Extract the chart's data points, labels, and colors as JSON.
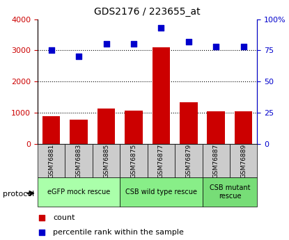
{
  "title": "GDS2176 / 223655_at",
  "samples": [
    "GSM76881",
    "GSM76883",
    "GSM76885",
    "GSM76875",
    "GSM76877",
    "GSM76879",
    "GSM76887",
    "GSM76889"
  ],
  "counts": [
    900,
    780,
    1140,
    1060,
    3090,
    1340,
    1050,
    1050
  ],
  "percentile_ranks": [
    75,
    70,
    80,
    80,
    93,
    82,
    78,
    78
  ],
  "bar_color": "#cc0000",
  "dot_color": "#0000cc",
  "left_ylim": [
    0,
    4000
  ],
  "right_ylim": [
    0,
    100
  ],
  "left_yticks": [
    0,
    1000,
    2000,
    3000,
    4000
  ],
  "right_yticks": [
    0,
    25,
    50,
    75,
    100
  ],
  "right_yticklabels": [
    "0",
    "25",
    "50",
    "75",
    "100%"
  ],
  "groups": [
    {
      "label": "eGFP mock rescue",
      "start": 0,
      "end": 3,
      "color": "#aaffaa"
    },
    {
      "label": "CSB wild type rescue",
      "start": 3,
      "end": 6,
      "color": "#88ee88"
    },
    {
      "label": "CSB mutant\nrescue",
      "start": 6,
      "end": 8,
      "color": "#77dd77"
    }
  ],
  "protocol_label": "protocol",
  "legend_count_label": "count",
  "legend_percentile_label": "percentile rank within the sample",
  "grid_color": "black",
  "tick_label_color_left": "#cc0000",
  "tick_label_color_right": "#0000cc",
  "xlabel_area_color": "#cccccc"
}
